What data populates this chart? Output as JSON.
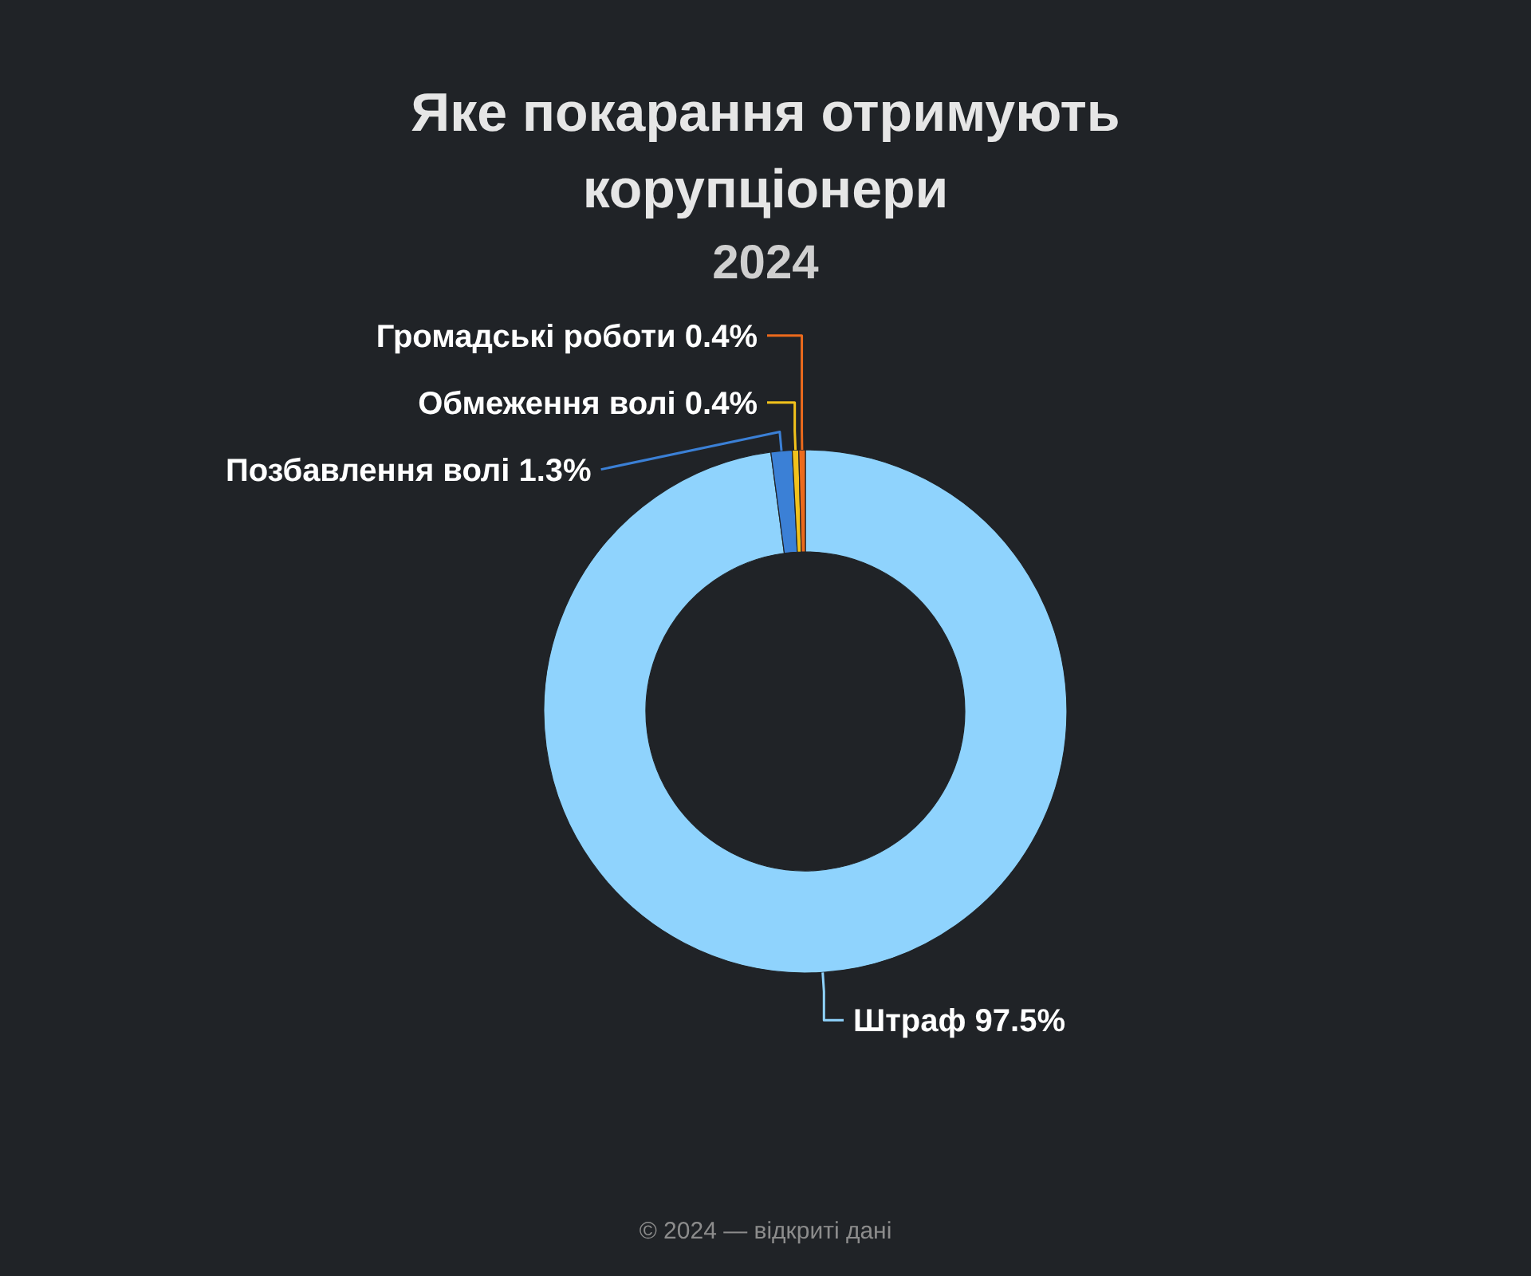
{
  "chart_data": {
    "type": "donut",
    "title": "Яке покарання отримують корупціонери",
    "subtitle": "2024",
    "categories": [
      "Штраф",
      "Позбавлення волі",
      "Обмеження волі",
      "Громадські роботи"
    ],
    "values": [
      97.5,
      1.3,
      0.4,
      0.4
    ],
    "value_labels": [
      "97.5%",
      "1.3%",
      "0.4%",
      "0.4%"
    ],
    "colors": [
      "#8fd3fd",
      "#3b80d6",
      "#f2c21b",
      "#ec6a1c"
    ],
    "annotations": [
      "© 2024 — відкриті дані"
    ]
  }
}
